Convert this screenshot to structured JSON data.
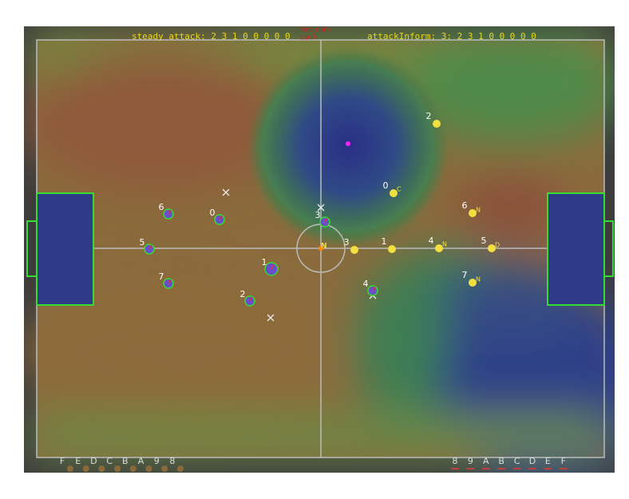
{
  "header": {
    "left_status": "steady attack: 2 3 1 0 0 0 0 0",
    "right_status": "attackInform: 3: 2 3 1 0 0 0 0 0",
    "debug_top": "fect_num",
    "debug_bottom": "canR"
  },
  "blue_team": [
    "6",
    "0",
    "5",
    "1",
    "7",
    "2",
    "3",
    "4"
  ],
  "yellow_team": [
    "2",
    "0",
    "6",
    "3",
    "1",
    "4",
    "5",
    "7"
  ],
  "yellow_tags": [
    "C",
    "N",
    "N",
    "D",
    "N"
  ],
  "ball_tag": "N",
  "left_bench": [
    "F",
    "E",
    "D",
    "C",
    "B",
    "A",
    "9",
    "8"
  ],
  "right_bench": [
    "8",
    "9",
    "A",
    "B",
    "C",
    "D",
    "E",
    "F"
  ]
}
